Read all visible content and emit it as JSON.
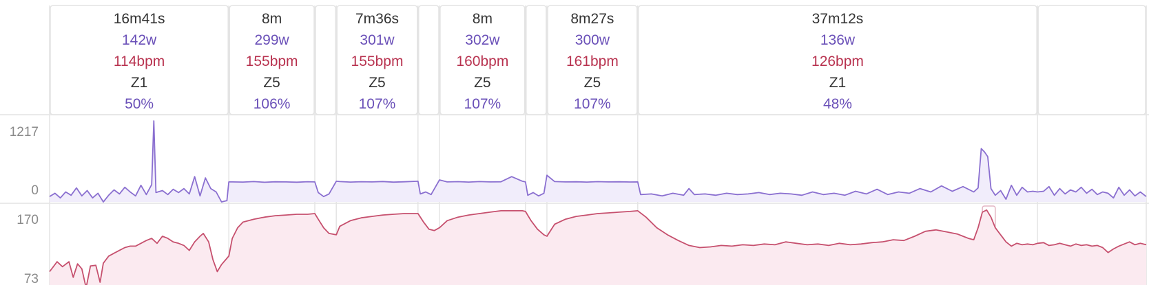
{
  "colors": {
    "power": "#8a6fd0",
    "power_fill": "#f1edfb",
    "hr": "#c6506e",
    "hr_fill": "#fbeaf0",
    "grid": "#e4e4e4",
    "label": "#8a8a8a"
  },
  "chart_data": {
    "type": "line",
    "x_unit": "minutes",
    "x_range": [
      0,
      102.05
    ],
    "intervals": [
      {
        "start": 0,
        "end": 16.68,
        "duration": "16m41s",
        "power": "142w",
        "hr": "114bpm",
        "zone": "Z1",
        "pct": "50%"
      },
      {
        "start": 16.68,
        "end": 24.68,
        "duration": "8m",
        "power": "299w",
        "hr": "155bpm",
        "zone": "Z5",
        "pct": "106%"
      },
      {
        "start": 24.68,
        "end": 26.68,
        "duration": "",
        "power": "",
        "hr": "",
        "zone": "",
        "pct": ""
      },
      {
        "start": 26.68,
        "end": 34.28,
        "duration": "7m36s",
        "power": "301w",
        "hr": "155bpm",
        "zone": "Z5",
        "pct": "107%"
      },
      {
        "start": 34.28,
        "end": 36.28,
        "duration": "",
        "power": "",
        "hr": "",
        "zone": "",
        "pct": ""
      },
      {
        "start": 36.28,
        "end": 44.28,
        "duration": "8m",
        "power": "302w",
        "hr": "160bpm",
        "zone": "Z5",
        "pct": "107%"
      },
      {
        "start": 44.28,
        "end": 46.28,
        "duration": "",
        "power": "",
        "hr": "",
        "zone": "",
        "pct": ""
      },
      {
        "start": 46.28,
        "end": 54.73,
        "duration": "8m27s",
        "power": "300w",
        "hr": "161bpm",
        "zone": "Z5",
        "pct": "107%"
      },
      {
        "start": 54.73,
        "end": 91.93,
        "duration": "37m12s",
        "power": "136w",
        "hr": "126bpm",
        "zone": "Z1",
        "pct": "48%"
      },
      {
        "start": 91.93,
        "end": 102.05,
        "duration": "",
        "power": "",
        "hr": "",
        "zone": "",
        "pct": ""
      }
    ],
    "highlight_interval": {
      "start": 86.8,
      "end": 88.0
    },
    "series": [
      {
        "key": "power",
        "unit": "w",
        "ylim": [
          0,
          1217
        ],
        "ticks": [
          "1217",
          "0"
        ],
        "points": [
          [
            0,
            80
          ],
          [
            0.5,
            130
          ],
          [
            1,
            60
          ],
          [
            1.5,
            150
          ],
          [
            2,
            100
          ],
          [
            2.5,
            210
          ],
          [
            3,
            90
          ],
          [
            3.5,
            170
          ],
          [
            4,
            60
          ],
          [
            4.5,
            130
          ],
          [
            5,
            0
          ],
          [
            5.5,
            100
          ],
          [
            6,
            180
          ],
          [
            6.5,
            120
          ],
          [
            7,
            220
          ],
          [
            7.5,
            150
          ],
          [
            8,
            90
          ],
          [
            8.5,
            250
          ],
          [
            9,
            110
          ],
          [
            9.5,
            260
          ],
          [
            9.7,
            1217
          ],
          [
            9.9,
            140
          ],
          [
            10.5,
            170
          ],
          [
            11,
            110
          ],
          [
            11.5,
            190
          ],
          [
            12,
            140
          ],
          [
            12.5,
            200
          ],
          [
            13,
            120
          ],
          [
            13.5,
            380
          ],
          [
            14,
            90
          ],
          [
            14.5,
            360
          ],
          [
            15,
            200
          ],
          [
            15.5,
            150
          ],
          [
            16,
            0
          ],
          [
            16.5,
            20
          ],
          [
            16.68,
            300
          ],
          [
            17,
            300
          ],
          [
            18,
            298
          ],
          [
            19,
            305
          ],
          [
            20,
            295
          ],
          [
            21,
            302
          ],
          [
            22,
            300
          ],
          [
            23,
            296
          ],
          [
            24,
            303
          ],
          [
            24.68,
            300
          ],
          [
            25,
            140
          ],
          [
            25.5,
            80
          ],
          [
            26,
            120
          ],
          [
            26.68,
            310
          ],
          [
            27,
            305
          ],
          [
            28,
            298
          ],
          [
            29,
            303
          ],
          [
            30,
            300
          ],
          [
            31,
            306
          ],
          [
            32,
            297
          ],
          [
            33,
            302
          ],
          [
            34.28,
            310
          ],
          [
            34.5,
            120
          ],
          [
            35,
            150
          ],
          [
            35.5,
            110
          ],
          [
            36.28,
            330
          ],
          [
            37,
            300
          ],
          [
            38,
            304
          ],
          [
            39,
            298
          ],
          [
            40,
            305
          ],
          [
            41,
            300
          ],
          [
            42,
            302
          ],
          [
            43,
            380
          ],
          [
            44,
            310
          ],
          [
            44.28,
            300
          ],
          [
            44.5,
            100
          ],
          [
            45,
            140
          ],
          [
            45.5,
            90
          ],
          [
            46,
            130
          ],
          [
            46.28,
            400
          ],
          [
            47,
            305
          ],
          [
            48,
            300
          ],
          [
            49,
            302
          ],
          [
            50,
            298
          ],
          [
            51,
            304
          ],
          [
            52,
            300
          ],
          [
            53,
            302
          ],
          [
            54,
            299
          ],
          [
            54.73,
            300
          ],
          [
            55,
            110
          ],
          [
            56,
            120
          ],
          [
            57,
            90
          ],
          [
            58,
            130
          ],
          [
            59,
            100
          ],
          [
            59.5,
            200
          ],
          [
            60,
            110
          ],
          [
            61,
            120
          ],
          [
            62,
            100
          ],
          [
            63,
            130
          ],
          [
            64,
            110
          ],
          [
            65,
            120
          ],
          [
            66,
            140
          ],
          [
            67,
            110
          ],
          [
            68,
            130
          ],
          [
            69,
            120
          ],
          [
            70,
            100
          ],
          [
            71,
            150
          ],
          [
            72,
            110
          ],
          [
            73,
            130
          ],
          [
            74,
            100
          ],
          [
            75,
            160
          ],
          [
            76,
            120
          ],
          [
            77,
            190
          ],
          [
            78,
            110
          ],
          [
            79,
            150
          ],
          [
            80,
            130
          ],
          [
            81,
            200
          ],
          [
            82,
            150
          ],
          [
            83,
            240
          ],
          [
            84,
            160
          ],
          [
            85,
            230
          ],
          [
            86,
            150
          ],
          [
            86.4,
            210
          ],
          [
            86.7,
            800
          ],
          [
            87.0,
            750
          ],
          [
            87.3,
            680
          ],
          [
            87.6,
            200
          ],
          [
            88,
            100
          ],
          [
            88.5,
            170
          ],
          [
            89,
            40
          ],
          [
            89.5,
            250
          ],
          [
            90,
            100
          ],
          [
            90.5,
            220
          ],
          [
            91,
            150
          ],
          [
            91.5,
            160
          ],
          [
            91.93,
            150
          ],
          [
            92.5,
            160
          ],
          [
            93,
            230
          ],
          [
            93.5,
            100
          ],
          [
            94,
            200
          ],
          [
            94.5,
            120
          ],
          [
            95,
            180
          ],
          [
            95.5,
            150
          ],
          [
            96,
            220
          ],
          [
            96.5,
            130
          ],
          [
            97,
            190
          ],
          [
            97.5,
            110
          ],
          [
            98,
            150
          ],
          [
            98.5,
            130
          ],
          [
            99,
            60
          ],
          [
            99.5,
            220
          ],
          [
            100,
            100
          ],
          [
            100.5,
            180
          ],
          [
            101,
            90
          ],
          [
            101.5,
            150
          ],
          [
            102.05,
            80
          ]
        ]
      },
      {
        "key": "hr",
        "unit": "bpm",
        "ylim": [
          73,
          170
        ],
        "ticks": [
          "170",
          "73"
        ],
        "points": [
          [
            0,
            88
          ],
          [
            0.7,
            102
          ],
          [
            1.2,
            95
          ],
          [
            1.8,
            102
          ],
          [
            2.2,
            80
          ],
          [
            2.6,
            99
          ],
          [
            3,
            92
          ],
          [
            3.4,
            65
          ],
          [
            3.8,
            96
          ],
          [
            4.3,
            97
          ],
          [
            4.7,
            73
          ],
          [
            5,
            100
          ],
          [
            5.5,
            110
          ],
          [
            6,
            114
          ],
          [
            6.5,
            118
          ],
          [
            7,
            122
          ],
          [
            7.5,
            124
          ],
          [
            8,
            124
          ],
          [
            8.5,
            128
          ],
          [
            9,
            132
          ],
          [
            9.5,
            135
          ],
          [
            10,
            128
          ],
          [
            10.5,
            138
          ],
          [
            11,
            135
          ],
          [
            11.5,
            130
          ],
          [
            12,
            128
          ],
          [
            12.5,
            125
          ],
          [
            13,
            118
          ],
          [
            13.5,
            130
          ],
          [
            14,
            138
          ],
          [
            14.3,
            142
          ],
          [
            14.8,
            130
          ],
          [
            15.2,
            105
          ],
          [
            15.6,
            88
          ],
          [
            16,
            98
          ],
          [
            16.68,
            110
          ],
          [
            17,
            135
          ],
          [
            17.5,
            150
          ],
          [
            18,
            158
          ],
          [
            19,
            162
          ],
          [
            20,
            165
          ],
          [
            21,
            167
          ],
          [
            22,
            168
          ],
          [
            23,
            169
          ],
          [
            24,
            169
          ],
          [
            24.68,
            170
          ],
          [
            25,
            162
          ],
          [
            25.5,
            150
          ],
          [
            26,
            142
          ],
          [
            26.68,
            140
          ],
          [
            27,
            152
          ],
          [
            28,
            160
          ],
          [
            29,
            164
          ],
          [
            30,
            166
          ],
          [
            31,
            168
          ],
          [
            32,
            169
          ],
          [
            33,
            170
          ],
          [
            34.28,
            170
          ],
          [
            34.8,
            158
          ],
          [
            35.3,
            148
          ],
          [
            35.8,
            146
          ],
          [
            36.28,
            150
          ],
          [
            37,
            160
          ],
          [
            38,
            165
          ],
          [
            39,
            168
          ],
          [
            40,
            170
          ],
          [
            41,
            172
          ],
          [
            42,
            174
          ],
          [
            43,
            174
          ],
          [
            44,
            174
          ],
          [
            44.28,
            173
          ],
          [
            44.8,
            160
          ],
          [
            45.4,
            148
          ],
          [
            46,
            140
          ],
          [
            46.28,
            138
          ],
          [
            47,
            155
          ],
          [
            48,
            162
          ],
          [
            49,
            166
          ],
          [
            50,
            168
          ],
          [
            51,
            170
          ],
          [
            52,
            171
          ],
          [
            53,
            172
          ],
          [
            54,
            173
          ],
          [
            54.73,
            174
          ],
          [
            55.5,
            165
          ],
          [
            56.5,
            150
          ],
          [
            57.5,
            140
          ],
          [
            58.5,
            132
          ],
          [
            59.5,
            125
          ],
          [
            60.5,
            122
          ],
          [
            61.5,
            123
          ],
          [
            62.5,
            125
          ],
          [
            63.5,
            124
          ],
          [
            64.5,
            126
          ],
          [
            65.5,
            125
          ],
          [
            66.5,
            127
          ],
          [
            67.5,
            126
          ],
          [
            68.5,
            130
          ],
          [
            69.5,
            128
          ],
          [
            70.5,
            126
          ],
          [
            71.5,
            127
          ],
          [
            72.5,
            125
          ],
          [
            73.5,
            128
          ],
          [
            74.5,
            126
          ],
          [
            75.5,
            127
          ],
          [
            76.5,
            129
          ],
          [
            77.5,
            130
          ],
          [
            78.5,
            133
          ],
          [
            79.5,
            132
          ],
          [
            80.5,
            138
          ],
          [
            81.5,
            145
          ],
          [
            82.5,
            147
          ],
          [
            83.5,
            144
          ],
          [
            84.5,
            141
          ],
          [
            85.5,
            135
          ],
          [
            86,
            133
          ],
          [
            86.4,
            150
          ],
          [
            86.8,
            172
          ],
          [
            87.2,
            175
          ],
          [
            87.6,
            165
          ],
          [
            88,
            150
          ],
          [
            88.5,
            140
          ],
          [
            89,
            130
          ],
          [
            89.5,
            124
          ],
          [
            90,
            128
          ],
          [
            90.5,
            126
          ],
          [
            91,
            127
          ],
          [
            91.5,
            126
          ],
          [
            91.93,
            128
          ],
          [
            92.5,
            129
          ],
          [
            93,
            125
          ],
          [
            93.5,
            126
          ],
          [
            94,
            128
          ],
          [
            94.5,
            126
          ],
          [
            95,
            124
          ],
          [
            95.5,
            127
          ],
          [
            96,
            125
          ],
          [
            96.5,
            126
          ],
          [
            97,
            124
          ],
          [
            97.5,
            125
          ],
          [
            98,
            122
          ],
          [
            98.5,
            115
          ],
          [
            99,
            120
          ],
          [
            99.5,
            124
          ],
          [
            100,
            127
          ],
          [
            100.5,
            130
          ],
          [
            101,
            126
          ],
          [
            101.5,
            128
          ],
          [
            102.05,
            126
          ]
        ]
      }
    ]
  }
}
